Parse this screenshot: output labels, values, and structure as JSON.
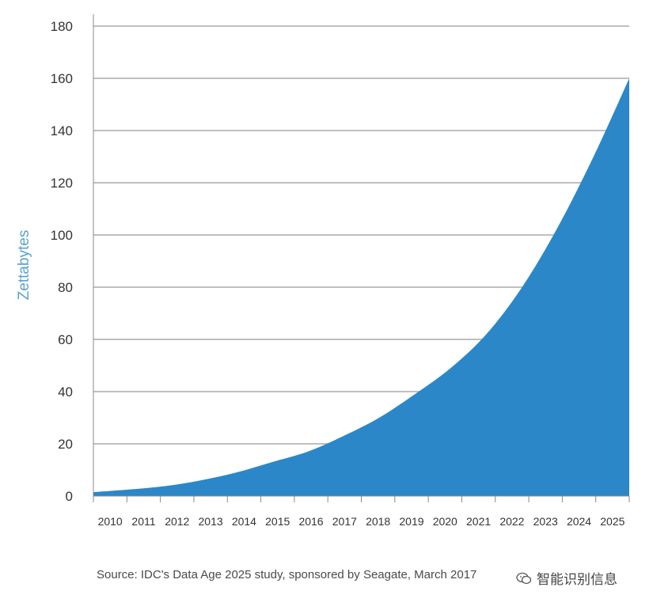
{
  "chart_data": {
    "type": "area",
    "x": [
      "2010",
      "2011",
      "2012",
      "2013",
      "2014",
      "2015",
      "2016",
      "2017",
      "2018",
      "2019",
      "2020",
      "2021",
      "2022",
      "2023",
      "2024",
      "2025"
    ],
    "series": [
      {
        "values": [
          1.5,
          2.5,
          3.8,
          6,
          9,
          13,
          17,
          23,
          30,
          39,
          49,
          62,
          80,
          103,
          130,
          160
        ]
      }
    ],
    "ylabel": "Zettabytes",
    "xlabel": "",
    "title": "",
    "ylim": [
      0,
      180
    ],
    "yticks": [
      0,
      20,
      40,
      60,
      80,
      100,
      120,
      140,
      160,
      180
    ],
    "grid": true,
    "fill_color": "#2b87c8",
    "ylabel_color": "#5aa2cf",
    "grid_color": "#bfbfbf"
  },
  "source": "Source: IDC's Data Age 2025 study, sponsored by Seagate, March 2017",
  "watermark": {
    "icon": "wechat-icon",
    "text": "智能识别信息"
  }
}
